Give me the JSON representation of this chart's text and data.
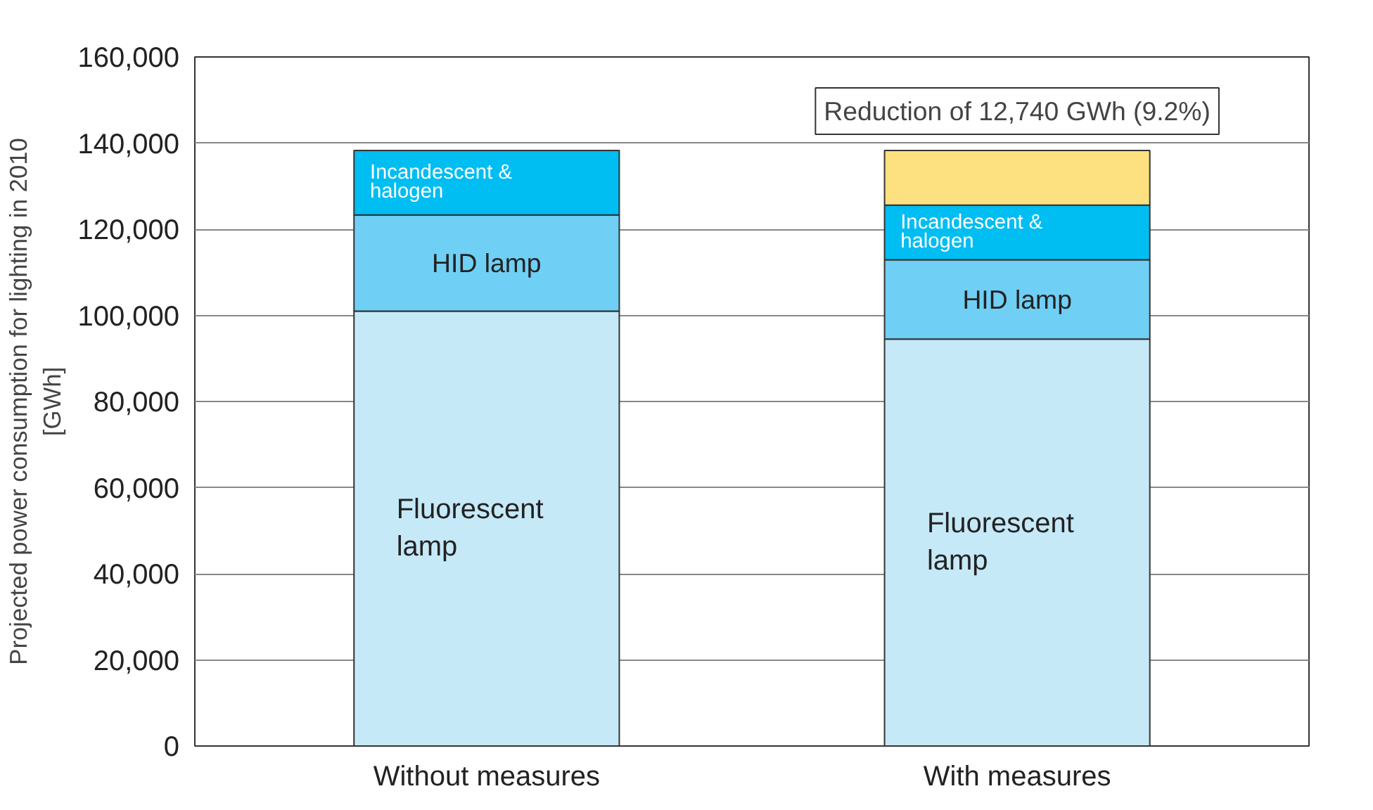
{
  "chart_data": {
    "type": "bar",
    "stacked": true,
    "ylabel": "Projected power consumption for lighting in 2010\n[GWh]",
    "categories": [
      "Without measures",
      "With measures"
    ],
    "series": [
      {
        "name": "Fluorescent lamp",
        "color": "#c6e9f8",
        "values": [
          101000,
          94500
        ]
      },
      {
        "name": "HID lamp",
        "color": "#70cff5",
        "values": [
          22300,
          18400
        ]
      },
      {
        "name": "Incandescent & halogen",
        "color": "#00bdf2",
        "values": [
          15000,
          12700
        ]
      },
      {
        "color": "#fde07f",
        "values": [
          null,
          12700
        ]
      }
    ],
    "ylim": [
      0,
      160000
    ],
    "yticks": [
      {
        "value": 0,
        "label": "0"
      },
      {
        "value": 20000,
        "label": "20,000"
      },
      {
        "value": 40000,
        "label": "40,000"
      },
      {
        "value": 60000,
        "label": "60,000"
      },
      {
        "value": 80000,
        "label": "80,000"
      },
      {
        "value": 100000,
        "label": "100,000"
      },
      {
        "value": 120000,
        "label": "120,000"
      },
      {
        "value": 140000,
        "label": "140,000"
      },
      {
        "value": 160000,
        "label": "160,000"
      }
    ],
    "grid": "y",
    "annotations": [
      {
        "text": "Reduction of 12,740 GWh (9.2%)",
        "x": "With measures",
        "y": 138300
      }
    ]
  }
}
